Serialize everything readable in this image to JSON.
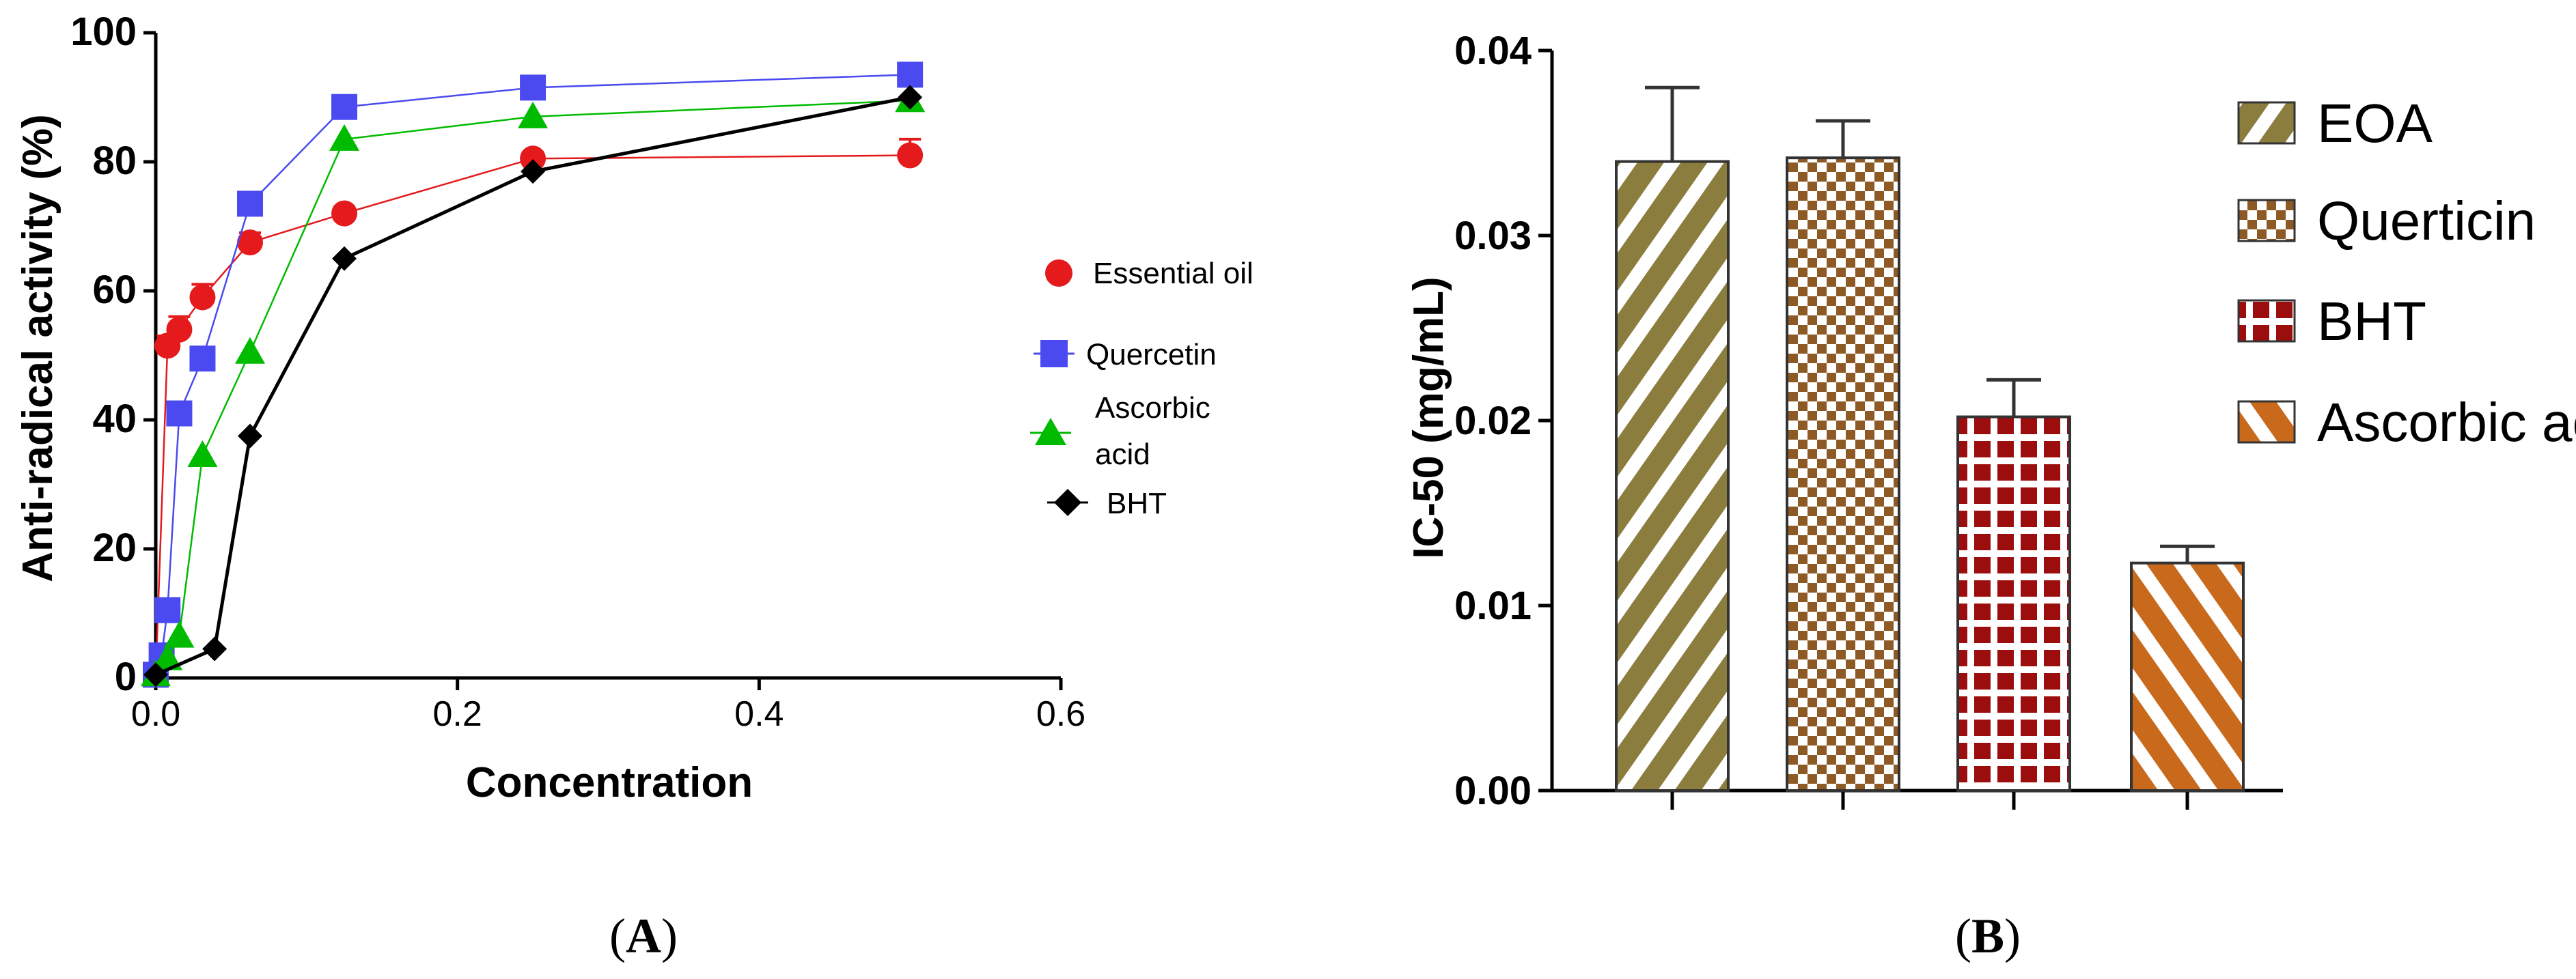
{
  "chart_data": [
    {
      "type": "line",
      "panel_label": "A",
      "xlabel": "Concentration",
      "ylabel": "Anti-radical activity (%)",
      "xlim": [
        0,
        0.6
      ],
      "ylim": [
        0,
        100
      ],
      "x_ticks": [
        0.0,
        0.2,
        0.4,
        0.6
      ],
      "x_tick_labels": [
        "0.0",
        "0.2",
        "0.4",
        "0.6"
      ],
      "y_ticks": [
        0,
        20,
        40,
        60,
        80,
        100
      ],
      "y_tick_labels": [
        "0",
        "20",
        "40",
        "60",
        "80",
        "100"
      ],
      "legend_position": "right",
      "series": [
        {
          "name": "Essential oil",
          "color": "#e41a1c",
          "marker": "circle",
          "x": [
            0,
            0.0078,
            0.0156,
            0.031,
            0.0625,
            0.125,
            0.25,
            0.5
          ],
          "y": [
            0.5,
            51.5,
            54,
            59,
            67.5,
            72,
            80.5,
            81
          ],
          "err": [
            0,
            1.5,
            2,
            2,
            1.5,
            1,
            1,
            2.5
          ]
        },
        {
          "name": "Quercetin",
          "color": "#4a4af0",
          "marker": "square",
          "x": [
            0,
            0.0039,
            0.0078,
            0.0156,
            0.031,
            0.0625,
            0.125,
            0.25,
            0.5
          ],
          "y": [
            0.5,
            3.5,
            10.5,
            41,
            49.5,
            73.5,
            88.5,
            91.5,
            93.5
          ],
          "err": [
            0,
            0,
            0,
            0,
            0,
            0,
            0,
            0,
            0
          ]
        },
        {
          "name": "Ascorbic acid",
          "color": "#00bb00",
          "marker": "triangle",
          "x": [
            0,
            0.0078,
            0.0156,
            0.031,
            0.0625,
            0.125,
            0.25,
            0.5
          ],
          "y": [
            0.5,
            3,
            6.5,
            34.5,
            50.5,
            83.5,
            87,
            89.5
          ],
          "err": [
            0,
            0,
            0,
            0,
            0,
            0,
            0,
            0
          ]
        },
        {
          "name": "BHT",
          "color": "#000000",
          "marker": "diamond",
          "x": [
            0,
            0.039,
            0.0625,
            0.125,
            0.25,
            0.5
          ],
          "y": [
            0.5,
            4.5,
            37.5,
            65,
            78.5,
            90
          ],
          "err": [
            0,
            0,
            0,
            0,
            0,
            0
          ]
        }
      ]
    },
    {
      "type": "bar",
      "panel_label": "B",
      "xlabel": "",
      "ylabel": "IC-50 (mg/mL)",
      "ylim": [
        0,
        0.04
      ],
      "y_ticks": [
        0,
        0.01,
        0.02,
        0.03,
        0.04
      ],
      "y_tick_labels": [
        "0.00",
        "0.01",
        "0.02",
        "0.03",
        "0.04"
      ],
      "legend_position": "right",
      "categories": [
        "EOA",
        "Querticin",
        "BHT",
        "Ascorbic acid"
      ],
      "values": [
        0.034,
        0.0342,
        0.0202,
        0.0123
      ],
      "errors": [
        0.004,
        0.002,
        0.002,
        0.0009
      ],
      "colors": [
        "#8b7d3e",
        "#8d5a26",
        "#9c0d0d",
        "#c8691c"
      ],
      "patterns": [
        "diagonal-stripes",
        "checkerboard",
        "grid-squares",
        "diagonal-stripes-reverse"
      ]
    }
  ]
}
